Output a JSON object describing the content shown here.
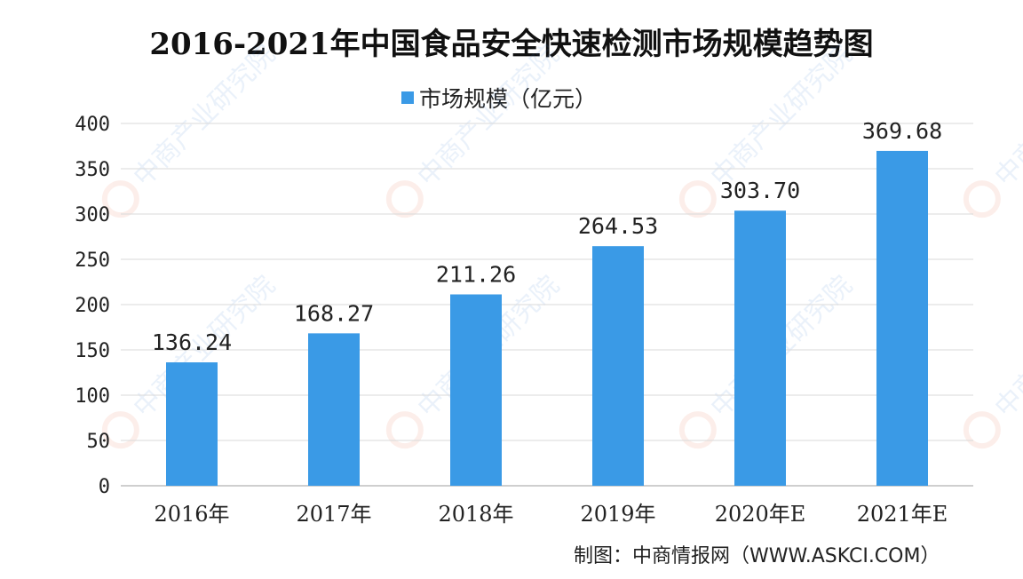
{
  "source_label": "制图：中商情报网（WWW.ASKCI.COM）",
  "watermark_text": "中商产业研究院",
  "colors": {
    "bar": "#3a9ae6",
    "grid": "#d9d9d9",
    "axis": "#bfbfbf",
    "text": "#222222"
  },
  "chart_data": {
    "type": "bar",
    "title": "2016-2021年中国食品安全快速检测市场规模趋势图",
    "categories": [
      "2016年",
      "2017年",
      "2018年",
      "2019年",
      "2020年E",
      "2021年E"
    ],
    "series": [
      {
        "name": "市场规模（亿元）",
        "values": [
          136.24,
          168.27,
          211.26,
          264.53,
          303.7,
          369.68
        ]
      }
    ],
    "value_labels": [
      "136.24",
      "168.27",
      "211.26",
      "264.53",
      "303.70",
      "369.68"
    ],
    "ylim": [
      0,
      400
    ],
    "yticks": [
      0,
      50,
      100,
      150,
      200,
      250,
      300,
      350,
      400
    ],
    "grid": true,
    "legend": "top-center",
    "xlabel": "",
    "ylabel": ""
  }
}
